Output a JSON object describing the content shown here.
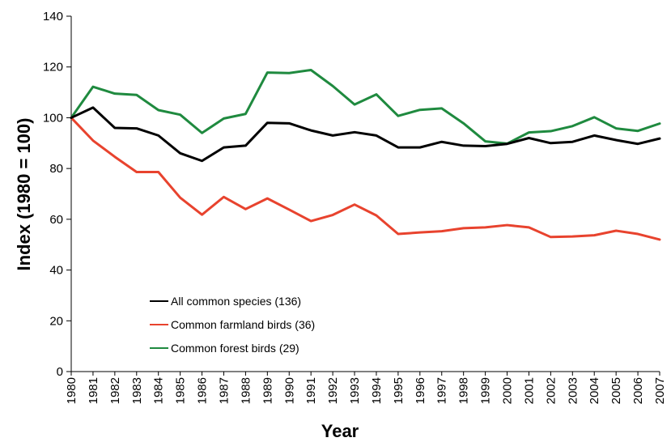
{
  "chart_data": {
    "type": "line",
    "xlabel": "Year",
    "ylabel": "Index (1980 = 100)",
    "ylim": [
      0,
      140
    ],
    "yticks": [
      0,
      20,
      40,
      60,
      80,
      100,
      120,
      140
    ],
    "grid": false,
    "legend_position": "lower-left",
    "x": [
      "1980",
      "1981",
      "1982",
      "1983",
      "1984",
      "1985",
      "1986",
      "1987",
      "1988",
      "1989",
      "1990",
      "1991",
      "1992",
      "1993",
      "1994",
      "1995",
      "1996",
      "1997",
      "1998",
      "1999",
      "2000",
      "2001",
      "2002",
      "2003",
      "2004",
      "2005",
      "2006",
      "2007"
    ],
    "series": [
      {
        "name": "All common species (136)",
        "color": "#000000",
        "values": [
          100,
          104,
          96,
          95.8,
          93,
          86,
          83,
          88.3,
          89,
          98,
          97.8,
          95,
          93,
          94.3,
          93,
          88.3,
          88.3,
          90.5,
          89,
          88.8,
          89.7,
          92,
          90,
          90.5,
          93,
          91.2,
          89.7,
          91.8
        ]
      },
      {
        "name": "Common farmland birds (36)",
        "color": "#e8432e",
        "values": [
          100,
          91,
          84.6,
          78.6,
          78.6,
          68.5,
          61.8,
          68.8,
          64,
          68.2,
          63.8,
          59.3,
          61.7,
          65.8,
          61.5,
          54.2,
          54.8,
          55.3,
          56.5,
          56.8,
          57.7,
          56.8,
          53,
          53.2,
          53.7,
          55.5,
          54.2,
          52
        ]
      },
      {
        "name": "Common forest birds (29)",
        "color": "#1f8a3f",
        "values": [
          100,
          112.2,
          109.5,
          109,
          103,
          101.2,
          94,
          99.7,
          101.5,
          117.8,
          117.6,
          118.8,
          112.5,
          105.2,
          109.2,
          100.7,
          103.1,
          103.7,
          97.8,
          90.7,
          89.8,
          94.2,
          94.7,
          96.7,
          100.2,
          95.8,
          94.8,
          97.7
        ]
      }
    ]
  }
}
